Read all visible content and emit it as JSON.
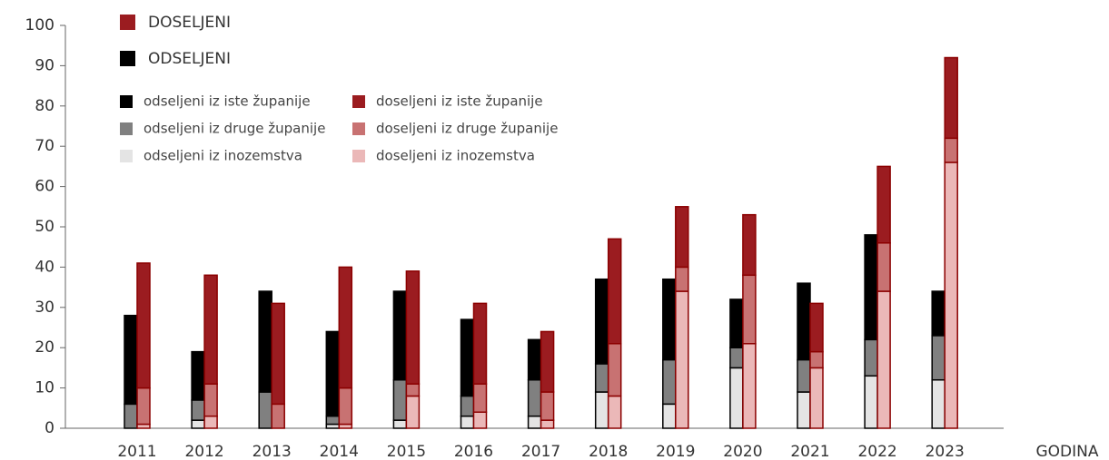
{
  "chart_data": {
    "type": "stacked-bar",
    "x_label": "GODINA",
    "categories": [
      "2011",
      "2012",
      "2013",
      "2014",
      "2015",
      "2016",
      "2017",
      "2018",
      "2019",
      "2020",
      "2021",
      "2022",
      "2023"
    ],
    "group_legend": [
      {
        "name": "DOSELJENI",
        "color": "#9b1c20"
      },
      {
        "name": "ODSELJENI",
        "color": "#000000"
      }
    ],
    "series": [
      {
        "name": "odseljeni iz iste županije",
        "color": "#000000",
        "stack": 0,
        "values": [
          22,
          12,
          25,
          21,
          22,
          19,
          10,
          21,
          20,
          12,
          19,
          26,
          11
        ]
      },
      {
        "name": "odseljeni iz druge županije",
        "color": "#808080",
        "stack": 0,
        "values": [
          6,
          5,
          9,
          2,
          10,
          5,
          9,
          7,
          11,
          5,
          8,
          9,
          11
        ]
      },
      {
        "name": "odseljeni iz inozemstva",
        "color": "#e4e4e4",
        "stack": 0,
        "values": [
          0,
          2,
          0,
          1,
          2,
          3,
          3,
          9,
          6,
          15,
          9,
          13,
          12
        ]
      },
      {
        "name": "doseljeni iz iste županije",
        "color": "#9b1c20",
        "stack": 1,
        "values": [
          31,
          27,
          25,
          30,
          28,
          20,
          15,
          26,
          15,
          15,
          12,
          19,
          20
        ]
      },
      {
        "name": "doseljeni iz druge županije",
        "color": "#c87272",
        "stack": 1,
        "values": [
          9,
          8,
          6,
          9,
          3,
          7,
          7,
          13,
          6,
          17,
          4,
          12,
          6
        ]
      },
      {
        "name": "doseljeni iz inozemstva",
        "color": "#ebb8b8",
        "stack": 1,
        "values": [
          1,
          3,
          0,
          1,
          8,
          4,
          2,
          8,
          34,
          21,
          15,
          34,
          66
        ]
      }
    ],
    "stack_outline": [
      "#000000",
      "#8b0000"
    ],
    "ylim": [
      0,
      100
    ],
    "yticks": [
      0,
      10,
      20,
      30,
      40,
      50,
      60,
      70,
      80,
      90,
      100
    ]
  }
}
